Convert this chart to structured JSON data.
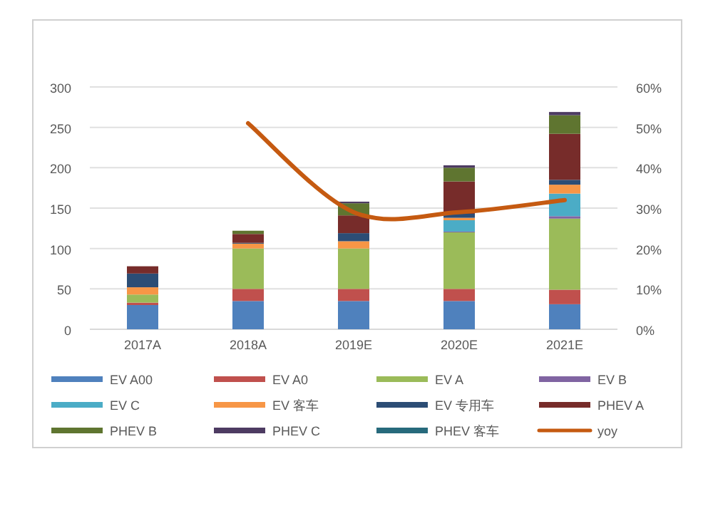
{
  "chart_data": {
    "type": "bar",
    "stacked": true,
    "categories": [
      "2017A",
      "2018A",
      "2019E",
      "2020E",
      "2021E"
    ],
    "series": [
      {
        "name": "EV A00",
        "color": "#4f81bd",
        "values": [
          30,
          35,
          35,
          35,
          31
        ]
      },
      {
        "name": "EV A0",
        "color": "#c0504d",
        "values": [
          3,
          15,
          15,
          15,
          18
        ]
      },
      {
        "name": "EV A",
        "color": "#9bbb59",
        "values": [
          10,
          50,
          50,
          70,
          88
        ]
      },
      {
        "name": "EV B",
        "color": "#8064a2",
        "values": [
          0,
          0,
          0,
          1,
          3
        ]
      },
      {
        "name": "EV C",
        "color": "#4bacc6",
        "values": [
          0,
          0,
          0,
          14,
          28
        ]
      },
      {
        "name": "EV 客车",
        "color": "#f79646",
        "values": [
          9,
          6,
          9,
          3,
          11
        ]
      },
      {
        "name": "EV 专用车",
        "color": "#2c4d75",
        "values": [
          17,
          1,
          10,
          5,
          6
        ]
      },
      {
        "name": "PHEV A",
        "color": "#772c2a",
        "values": [
          9,
          11,
          22,
          40,
          57
        ]
      },
      {
        "name": "PHEV B",
        "color": "#5f7530",
        "values": [
          0,
          4,
          15,
          17,
          23
        ]
      },
      {
        "name": "PHEV C",
        "color": "#4d3b62",
        "values": [
          0,
          0,
          2,
          3,
          4
        ]
      },
      {
        "name": "PHEV 客车",
        "color": "#276a7c",
        "values": [
          0,
          0,
          0,
          0,
          0
        ]
      },
      {
        "name": "yoy",
        "type": "line",
        "axis": "y2",
        "color": "#c55a11",
        "values": [
          null,
          51,
          29,
          29,
          32
        ]
      }
    ],
    "ylim": [
      0,
      300
    ],
    "yticks": [
      0,
      50,
      100,
      150,
      200,
      250,
      300
    ],
    "y2lim": [
      0,
      60
    ],
    "y2ticks": [
      {
        "value": 0,
        "label": "0%"
      },
      {
        "value": 10,
        "label": "10%"
      },
      {
        "value": 20,
        "label": "20%"
      },
      {
        "value": 30,
        "label": "30%"
      },
      {
        "value": 40,
        "label": "40%"
      },
      {
        "value": 50,
        "label": "50%"
      },
      {
        "value": 60,
        "label": "60%"
      }
    ],
    "grid": "y",
    "legend": "bottom",
    "marker": "none"
  }
}
